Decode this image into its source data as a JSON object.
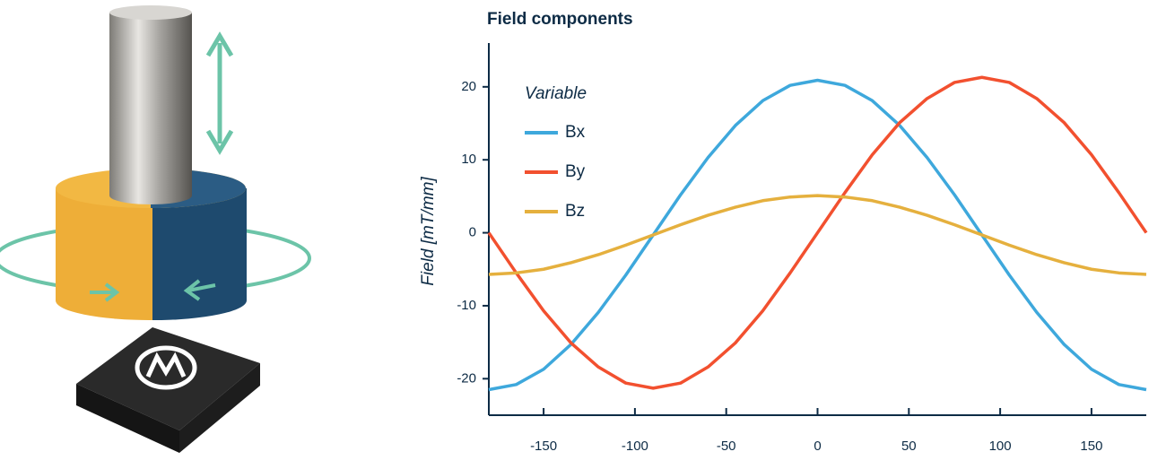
{
  "chart_data": {
    "type": "line",
    "title": "Field components",
    "y_label": "Field [mT/mm]",
    "legend_title": "Variable",
    "legend": "upper left",
    "x": [
      -180,
      -165,
      -150,
      -135,
      -120,
      -105,
      -90,
      -75,
      -60,
      -45,
      -30,
      -15,
      0,
      15,
      30,
      45,
      60,
      75,
      90,
      105,
      120,
      135,
      150,
      165,
      180
    ],
    "series": [
      {
        "name": "Bx",
        "color": "#3ea8dc",
        "values": [
          -21.5,
          -20.8,
          -18.7,
          -15.3,
          -10.9,
          -5.8,
          -0.3,
          5.2,
          10.3,
          14.7,
          18.1,
          20.2,
          20.9,
          20.2,
          18.1,
          14.7,
          10.3,
          5.2,
          -0.3,
          -5.8,
          -10.9,
          -15.3,
          -18.7,
          -20.8,
          -21.5
        ]
      },
      {
        "name": "By",
        "color": "#f2502f",
        "values": [
          0,
          -5.5,
          -10.7,
          -15.1,
          -18.4,
          -20.6,
          -21.3,
          -20.6,
          -18.4,
          -15.1,
          -10.7,
          -5.5,
          0,
          5.5,
          10.7,
          15.1,
          18.4,
          20.6,
          21.3,
          20.6,
          18.4,
          15.1,
          10.7,
          5.5,
          0
        ]
      },
      {
        "name": "Bz",
        "color": "#e5b03e",
        "values": [
          -5.7,
          -5.5,
          -5.0,
          -4.1,
          -3.0,
          -1.7,
          -0.3,
          1.1,
          2.4,
          3.5,
          4.4,
          4.9,
          5.1,
          4.9,
          4.4,
          3.5,
          2.4,
          1.1,
          -0.3,
          -1.7,
          -3.0,
          -4.1,
          -5.0,
          -5.5,
          -5.7
        ]
      }
    ],
    "xlim": [
      -180,
      180
    ],
    "xticks": [
      -150,
      -100,
      -50,
      0,
      50,
      100,
      150
    ],
    "ylim": [
      -25,
      26
    ],
    "yticks": [
      -20,
      -10,
      0,
      10,
      20
    ]
  }
}
